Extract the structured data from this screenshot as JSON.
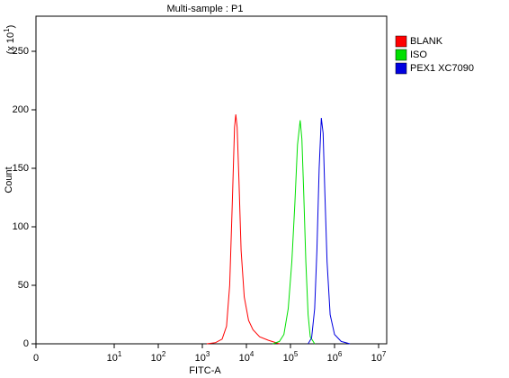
{
  "chart_data": {
    "type": "line",
    "title": "Multi-sample : P1",
    "x_label": "FITC-A",
    "y_label": "Count",
    "y_multiplier": {
      "prefix": "(x 10",
      "sup": "1",
      "suffix": ")"
    },
    "xscale": "log",
    "xlim": [
      0,
      10000000
    ],
    "ylim": [
      0,
      280
    ],
    "xticks": [
      {
        "value": 0,
        "label": "0"
      },
      {
        "value": 10,
        "label": "10",
        "sup": "1"
      },
      {
        "value": 100,
        "label": "10",
        "sup": "2"
      },
      {
        "value": 1000,
        "label": "10",
        "sup": "3"
      },
      {
        "value": 10000,
        "label": "10",
        "sup": "4"
      },
      {
        "value": 100000,
        "label": "10",
        "sup": "5"
      },
      {
        "value": 1000000,
        "label": "10",
        "sup": "6"
      },
      {
        "value": 10000000,
        "label": "10",
        "sup": "7"
      }
    ],
    "yticks": [
      0,
      50,
      100,
      150,
      200,
      250
    ],
    "legend": "top-right",
    "series": [
      {
        "name": "BLANK",
        "color": "#ff0000",
        "x": [
          1259,
          1995,
          2818,
          3548,
          4169,
          4786,
          5370,
          5754,
          6166,
          6761,
          7586,
          8913,
          11220,
          14125,
          19953,
          31623,
          56234
        ],
        "values": [
          0,
          1,
          4,
          15,
          50,
          120,
          185,
          196,
          185,
          140,
          80,
          40,
          20,
          12,
          6,
          3,
          0
        ]
      },
      {
        "name": "ISO",
        "color": "#00e000",
        "x": [
          39811,
          56234,
          70795,
          89125,
          107152,
          125893,
          144544,
          165959,
          181970,
          199526,
          223872,
          251189,
          281838,
          354813
        ],
        "values": [
          0,
          2,
          8,
          30,
          70,
          120,
          170,
          191,
          175,
          130,
          70,
          25,
          6,
          0
        ]
      },
      {
        "name": "PEX1 XC7090",
        "color": "#0000e0",
        "x": [
          251189,
          301995,
          354813,
          398107,
          446684,
          501187,
          549541,
          602560,
          676083,
          794328,
          1000000,
          1412538,
          2238721
        ],
        "values": [
          0,
          5,
          30,
          80,
          150,
          193,
          180,
          130,
          70,
          25,
          8,
          2,
          0
        ]
      }
    ]
  }
}
